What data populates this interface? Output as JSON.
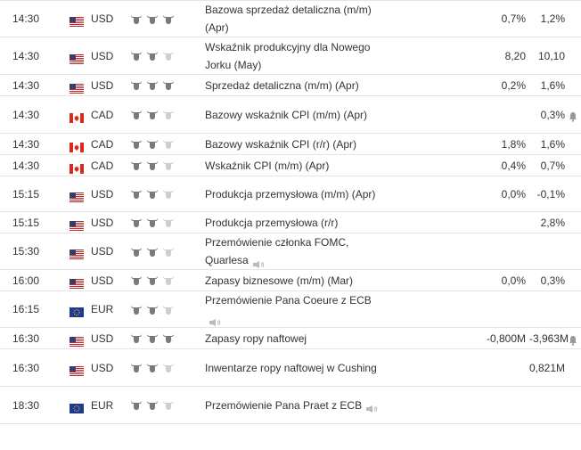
{
  "colors": {
    "bull_active": "#7a7a7a",
    "bull_inactive": "#cfcfcf",
    "border": "#e5e5e5"
  },
  "events": [
    {
      "time": "14:30",
      "flag": "usa-flag-icon",
      "currency": "USD",
      "importance": 3,
      "event": "Bazowa sprzedaż detaliczna (m/m) (Apr)",
      "actual": "",
      "forecast": "0,7%",
      "previous": "1,2%",
      "alert": false,
      "speech": false
    },
    {
      "time": "14:30",
      "flag": "usa-flag-icon",
      "currency": "USD",
      "importance": 2,
      "event": "Wskaźnik produkcyjny dla Nowego Jorku (May)",
      "actual": "",
      "forecast": "8,20",
      "previous": "10,10",
      "alert": false,
      "speech": false
    },
    {
      "time": "14:30",
      "flag": "usa-flag-icon",
      "currency": "USD",
      "importance": 3,
      "event": "Sprzedaż detaliczna (m/m) (Apr)",
      "actual": "",
      "forecast": "0,2%",
      "previous": "1,6%",
      "alert": false,
      "speech": false
    },
    {
      "time": "14:30",
      "flag": "canada-flag-icon",
      "currency": "CAD",
      "importance": 2,
      "event": "Bazowy wskaźnik CPI (m/m) (Apr)",
      "actual": "",
      "forecast": "",
      "previous": "0,3%",
      "alert": true,
      "speech": false
    },
    {
      "time": "14:30",
      "flag": "canada-flag-icon",
      "currency": "CAD",
      "importance": 2,
      "event": "Bazowy wskaźnik CPI (r/r) (Apr)",
      "actual": "",
      "forecast": "1,8%",
      "previous": "1,6%",
      "alert": false,
      "speech": false
    },
    {
      "time": "14:30",
      "flag": "canada-flag-icon",
      "currency": "CAD",
      "importance": 2,
      "event": "Wskaźnik CPI (m/m) (Apr)",
      "actual": "",
      "forecast": "0,4%",
      "previous": "0,7%",
      "alert": false,
      "speech": false
    },
    {
      "time": "15:15",
      "flag": "usa-flag-icon",
      "currency": "USD",
      "importance": 2,
      "event": "Produkcja przemysłowa (m/m) (Apr)",
      "actual": "",
      "forecast": "0,0%",
      "previous": "-0,1%",
      "alert": false,
      "speech": false
    },
    {
      "time": "15:15",
      "flag": "usa-flag-icon",
      "currency": "USD",
      "importance": 2,
      "event": "Produkcja przemysłowa (r/r)",
      "actual": "",
      "forecast": "",
      "previous": "2,8%",
      "alert": false,
      "speech": false
    },
    {
      "time": "15:30",
      "flag": "usa-flag-icon",
      "currency": "USD",
      "importance": 2,
      "event": "Przemówienie członka FOMC, Quarlesa",
      "actual": "",
      "forecast": "",
      "previous": "",
      "alert": false,
      "speech": true
    },
    {
      "time": "16:00",
      "flag": "usa-flag-icon",
      "currency": "USD",
      "importance": 2,
      "event": "Zapasy biznesowe (m/m) (Mar)",
      "actual": "",
      "forecast": "0,0%",
      "previous": "0,3%",
      "alert": false,
      "speech": false
    },
    {
      "time": "16:15",
      "flag": "eu-flag-icon",
      "currency": "EUR",
      "importance": 2,
      "event": "Przemówienie Pana Coeure z ECB",
      "actual": "",
      "forecast": "",
      "previous": "",
      "alert": false,
      "speech": true
    },
    {
      "time": "16:30",
      "flag": "usa-flag-icon",
      "currency": "USD",
      "importance": 3,
      "event": "Zapasy ropy naftowej",
      "actual": "",
      "forecast": "-0,800M",
      "previous": "-3,963M",
      "alert": true,
      "speech": false
    },
    {
      "time": "16:30",
      "flag": "usa-flag-icon",
      "currency": "USD",
      "importance": 2,
      "event": "Inwentarze ropy naftowej w Cushing",
      "actual": "",
      "forecast": "",
      "previous": "0,821M",
      "alert": false,
      "speech": false
    },
    {
      "time": "18:30",
      "flag": "eu-flag-icon",
      "currency": "EUR",
      "importance": 2,
      "event": "Przemówienie Pana Praet z ECB",
      "actual": "",
      "forecast": "",
      "previous": "",
      "alert": false,
      "speech": true
    }
  ]
}
